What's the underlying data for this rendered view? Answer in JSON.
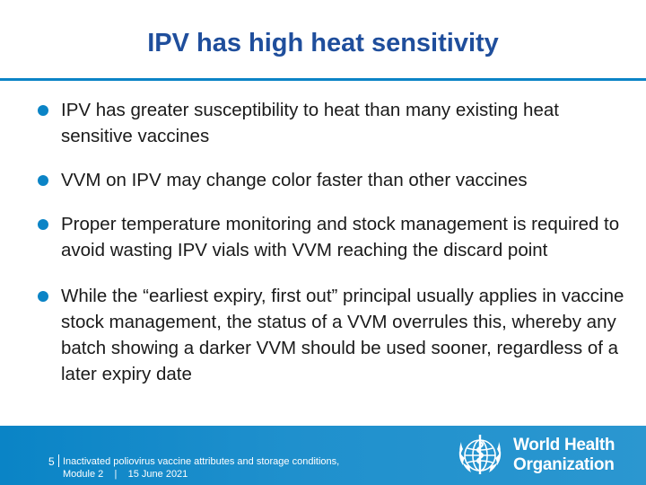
{
  "slide": {
    "title": "IPV has high heat sensitivity",
    "bullets": [
      {
        "text": "IPV has greater susceptibility to heat than many existing heat sensitive vaccines"
      },
      {
        "text": "VVM on IPV may change color faster than other vaccines"
      },
      {
        "text": "Proper temperature monitoring and stock management is required to avoid wasting IPV vials with VVM reaching the discard point"
      },
      {
        "text": "While the “earliest expiry,  first out” principal usually applies in vaccine stock management, the status of a VVM overrules this, whereby any batch showing a darker VVM should be used sooner, regardless of a later expiry date"
      }
    ]
  },
  "footer": {
    "page_number": "5",
    "subtitle": "Inactivated poliovirus vaccine attributes and storage conditions,",
    "module": "Module 2",
    "separator": "|",
    "date": "15 June 2021",
    "org_line1": "World Health",
    "org_line2": "Organization",
    "logo_icon": "who-emblem-icon"
  },
  "colors": {
    "title": "#1f4e9c",
    "accent": "#0b84c6",
    "footer_bg": "#0a84c6"
  }
}
